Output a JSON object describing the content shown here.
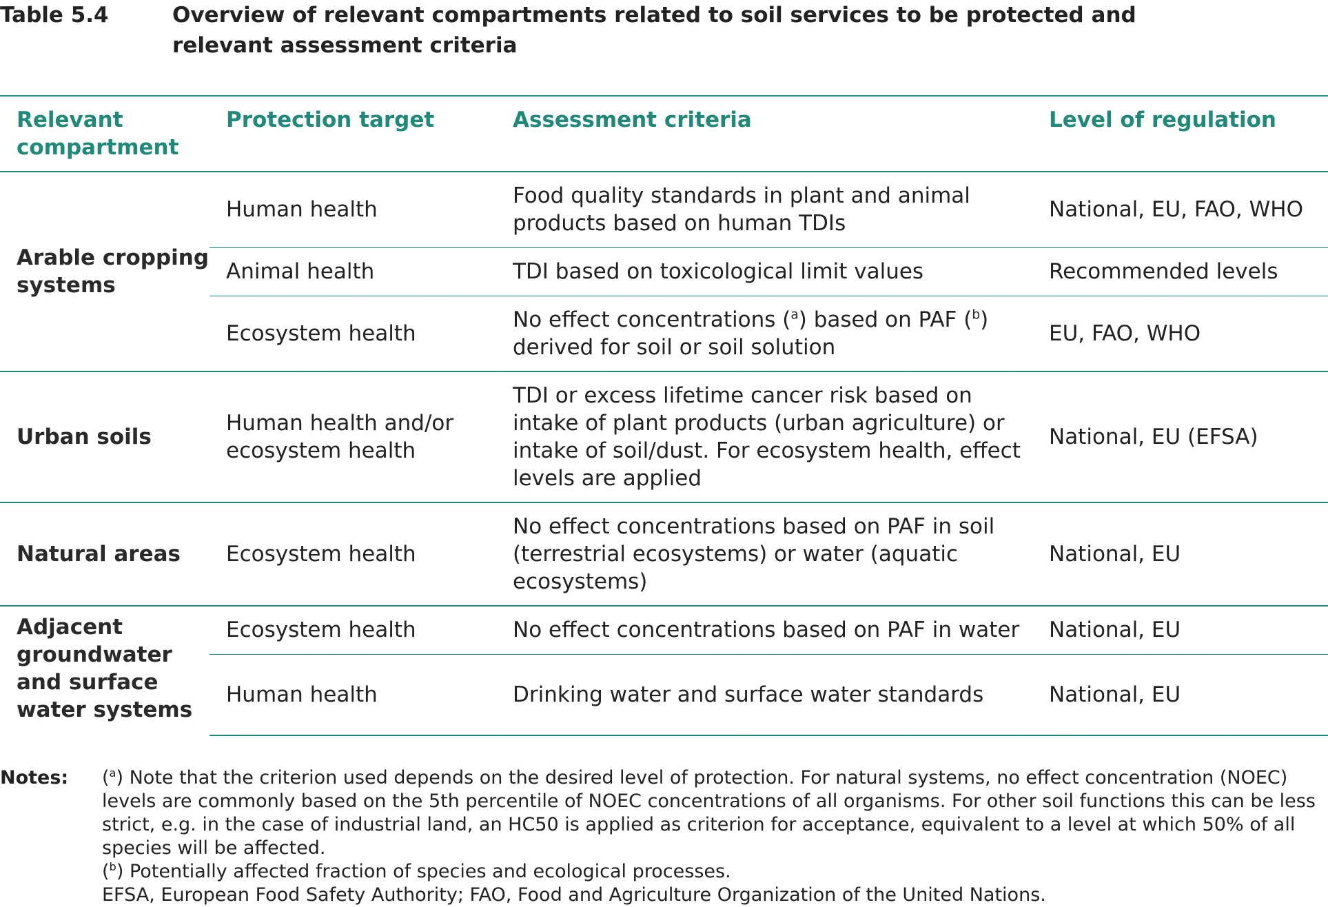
{
  "caption": {
    "number": "Table 5.4",
    "title": "Overview of relevant compartments related to soil services to be protected and relevant assessment criteria"
  },
  "table": {
    "headers": [
      "Relevant compartment",
      "Protection target",
      "Assessment criteria",
      "Level of regulation"
    ],
    "groups": [
      {
        "compartment": "Arable cropping systems",
        "rows": [
          {
            "target": "Human health",
            "criteria": "Food quality standards in plant and animal products based on human TDIs",
            "level": "National, EU, FAO, WHO"
          },
          {
            "target": "Animal health",
            "criteria": "TDI based on toxicological limit values",
            "level": "Recommended levels"
          },
          {
            "target": "Ecosystem health",
            "criteria_parts": [
              "No effect concentrations (",
              "a",
              ") based on PAF (",
              "b",
              ") derived for soil or soil solution"
            ],
            "level": "EU, FAO, WHO"
          }
        ]
      },
      {
        "compartment": "Urban soils",
        "rows": [
          {
            "target": "Human health and/or ecosystem health",
            "criteria": "TDI or excess lifetime cancer risk based on intake of plant products (urban agriculture) or intake of soil/dust. For ecosystem health, effect levels are applied",
            "level": "National, EU (EFSA)"
          }
        ]
      },
      {
        "compartment": "Natural areas",
        "rows": [
          {
            "target": "Ecosystem health",
            "criteria": "No effect concentrations based on PAF in soil (terrestrial ecosystems) or water (aquatic ecosystems)",
            "level": "National, EU"
          }
        ]
      },
      {
        "compartment": "Adjacent groundwater and surface water systems",
        "rows": [
          {
            "target": "Ecosystem health",
            "criteria": "No effect concentrations based on PAF in water",
            "level": "National, EU"
          },
          {
            "target": "Human health",
            "criteria": "Drinking water and surface water standards",
            "level": "National, EU"
          }
        ]
      }
    ]
  },
  "notes": {
    "label": "Notes:",
    "note_a": {
      "open": "(",
      "sup": "a",
      "close": ")",
      "text": " Note that the criterion used depends on the desired level of protection. For natural systems, no effect concentration (NOEC) levels are commonly based on the 5th percentile of NOEC concentrations of all organisms. For other soil functions this can be less strict, e.g. in the case of industrial land, an HC50 is applied as criterion for acceptance, equivalent to a level at which 50% of all species will be affected."
    },
    "note_b": {
      "open": "(",
      "sup": "b",
      "close": ")",
      "text": " Potentially affected fraction of species and ecological processes."
    },
    "abbreviations": "EFSA, European Food Safety Authority; FAO, Food and Agriculture Organization of the United Nations."
  }
}
